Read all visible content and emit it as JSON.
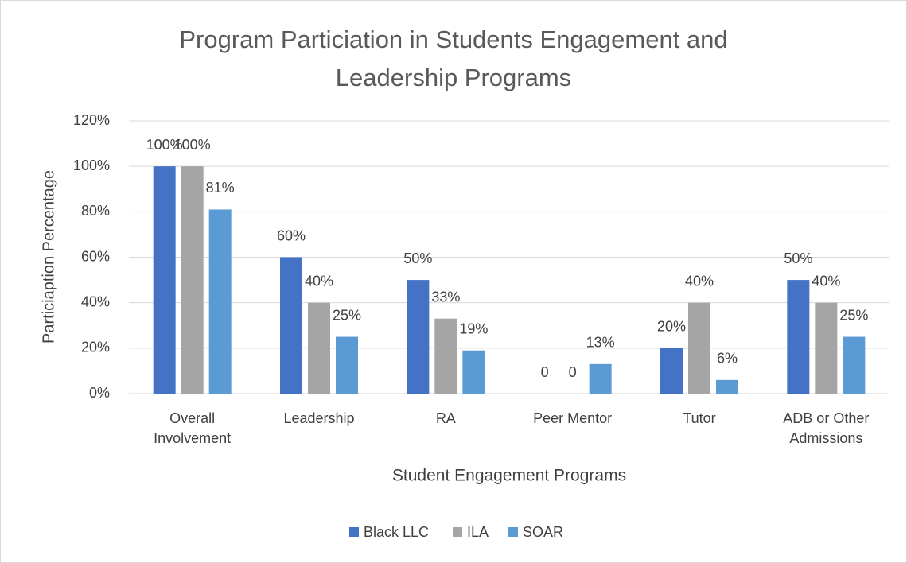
{
  "chart_data": {
    "type": "bar",
    "title": "Program Particiation in Students Engagement and Leadership Programs",
    "x_label": "Student Engagement Programs",
    "y_label": "Particiaption Percentage",
    "categories": [
      "Overall Involvement",
      "Leadership",
      "RA",
      "Peer Mentor",
      "Tutor",
      "ADB or Other Admissions"
    ],
    "series": [
      {
        "name": "Black LLC",
        "color": "#4472c4",
        "values": [
          100,
          60,
          50,
          0,
          20,
          50
        ],
        "value_labels": [
          "100%",
          "60%",
          "50%",
          "0",
          "20%",
          "50%"
        ]
      },
      {
        "name": "ILA",
        "color": "#a5a5a5",
        "values": [
          100,
          40,
          33,
          0,
          40,
          40
        ],
        "value_labels": [
          "100%",
          "40%",
          "33%",
          "0",
          "40%",
          "40%"
        ]
      },
      {
        "name": "SOAR",
        "color": "#5b9bd5",
        "values": [
          81,
          25,
          19,
          13,
          6,
          25
        ],
        "value_labels": [
          "81%",
          "25%",
          "19%",
          "13%",
          "6%",
          "25%"
        ]
      }
    ],
    "ylim": [
      0,
      120
    ],
    "yticks": [
      {
        "value": 0,
        "label": "0%"
      },
      {
        "value": 20,
        "label": "20%"
      },
      {
        "value": 40,
        "label": "40%"
      },
      {
        "value": 60,
        "label": "60%"
      },
      {
        "value": 80,
        "label": "80%"
      },
      {
        "value": 100,
        "label": "100%"
      },
      {
        "value": 120,
        "label": "120%"
      }
    ],
    "grid": true,
    "legend": "bottom"
  }
}
